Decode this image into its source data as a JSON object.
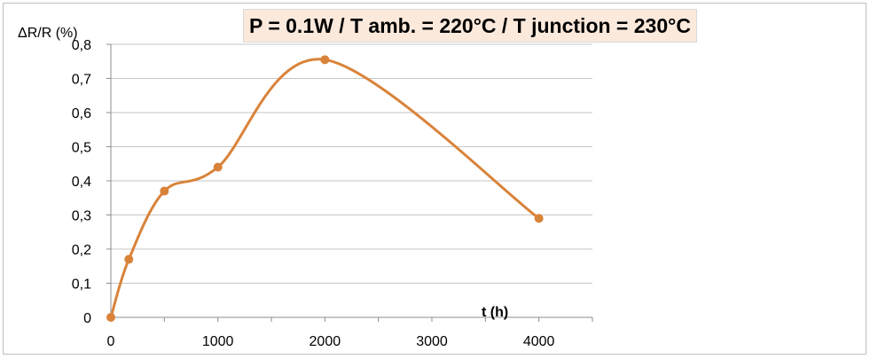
{
  "chart_data": {
    "type": "line",
    "title": "P = 0.1W / T amb. = 220°C / T junction = 230°C",
    "xlabel": "t (h)",
    "ylabel": "ΔR/R (%)",
    "xlim": [
      0,
      4500
    ],
    "ylim": [
      0,
      0.8
    ],
    "xticks": [
      0,
      1000,
      2000,
      3000,
      4000
    ],
    "xtick_labels": [
      "0",
      "1000",
      "2000",
      "3000",
      "4000"
    ],
    "yticks": [
      0,
      0.1,
      0.2,
      0.3,
      0.4,
      0.5,
      0.6,
      0.7,
      0.8
    ],
    "ytick_labels": [
      "0",
      "0,1",
      "0,2",
      "0,3",
      "0,4",
      "0,5",
      "0,6",
      "0,7",
      "0,8"
    ],
    "grid": "horizontal",
    "smoothed": true,
    "series": [
      {
        "color": "#d9833a",
        "x": [
          0,
          168,
          500,
          1000,
          2000,
          4000
        ],
        "y": [
          0,
          0.17,
          0.37,
          0.44,
          0.755,
          0.29
        ]
      }
    ]
  }
}
